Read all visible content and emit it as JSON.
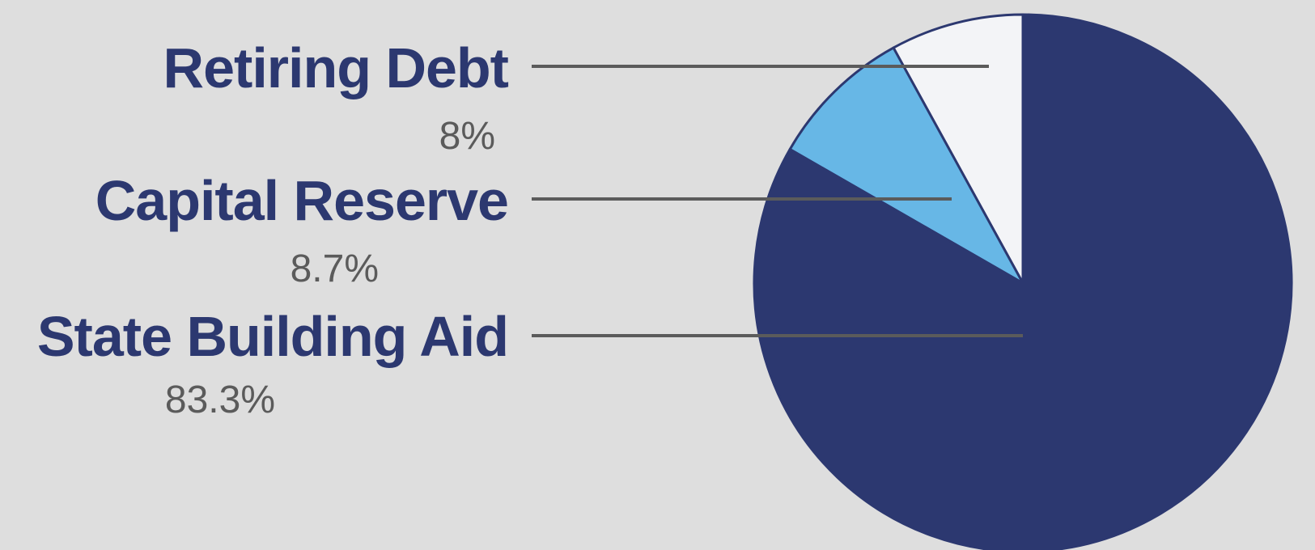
{
  "chart_data": {
    "type": "pie",
    "categories": [
      "Retiring Debt",
      "Capital Reserve",
      "State Building Aid"
    ],
    "values": [
      8,
      8.7,
      83.3
    ],
    "value_labels": [
      "8%",
      "8.7%",
      "83.3%"
    ],
    "unit": "%",
    "colors": [
      "#f3f4f7",
      "#67b7e6",
      "#2c3870"
    ],
    "legend": "left, with leader lines"
  }
}
